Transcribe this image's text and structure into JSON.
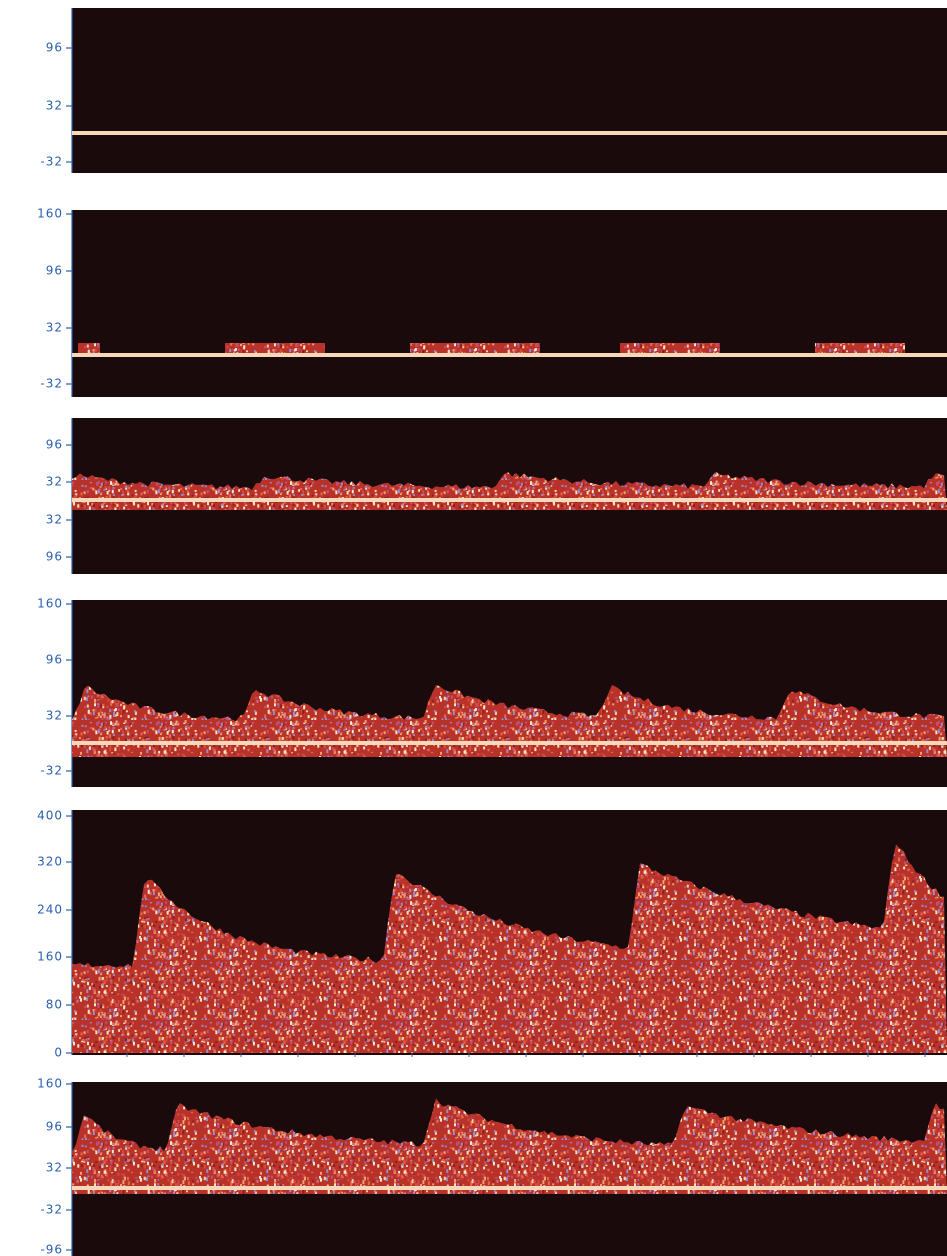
{
  "panels": [
    {
      "ticks": [
        "96",
        "32",
        "-32"
      ]
    },
    {
      "ticks": [
        "160",
        "96",
        "32",
        "-32"
      ]
    },
    {
      "ticks": [
        "96",
        "32",
        "32",
        "96"
      ]
    },
    {
      "ticks": [
        "160",
        "96",
        "32",
        "-32"
      ]
    },
    {
      "ticks": [
        "400",
        "320",
        "240",
        "160",
        "80",
        "0"
      ]
    },
    {
      "ticks": [
        "160",
        "96",
        "32",
        "-32",
        "-96"
      ]
    }
  ]
}
